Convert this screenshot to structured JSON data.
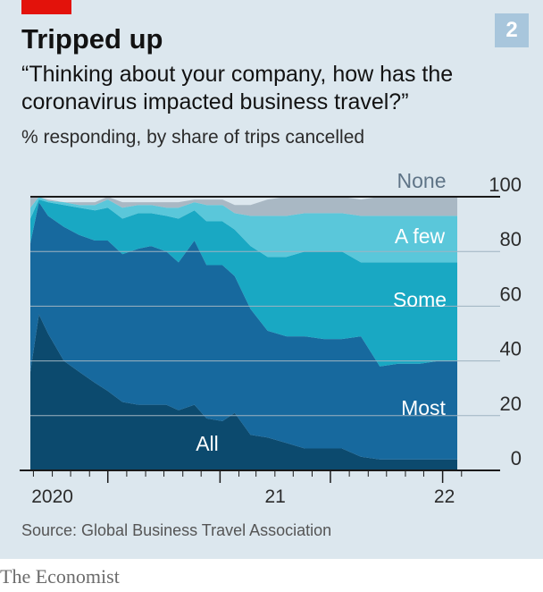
{
  "header": {
    "chart_number": "2",
    "title": "Tripped up",
    "subtitle": "“Thinking about your company, how has the coronavirus impacted business travel?”",
    "unit_note": "% responding, by share of trips cancelled"
  },
  "footer": {
    "source": "Source: Global Business Travel Association",
    "brand": "The Economist"
  },
  "colors": {
    "background": "#dce7ee",
    "accent_red": "#e3120b",
    "all": "#0c4a6e",
    "most": "#17699e",
    "some": "#19a8c3",
    "a_few": "#5ac7da",
    "none": "#a9b8c4"
  },
  "chart_data": {
    "type": "area",
    "stacked": true,
    "ylim": [
      0,
      100
    ],
    "y_ticks": [
      0,
      20,
      40,
      60,
      80,
      100
    ],
    "y_tick_labels": [
      "0",
      "20",
      "40",
      "60",
      "80",
      "100"
    ],
    "x_tick_labels": [
      "2020",
      "21",
      "22"
    ],
    "x_label_years": [
      2020,
      2021,
      2022
    ],
    "x_date_range": [
      "2020-02",
      "2022-02"
    ],
    "x": [
      "2020-02-25",
      "2020-03-10",
      "2020-03-25",
      "2020-04-20",
      "2020-05-15",
      "2020-06-10",
      "2020-07-01",
      "2020-07-25",
      "2020-08-20",
      "2020-09-10",
      "2020-10-05",
      "2020-10-25",
      "2020-11-20",
      "2020-12-10",
      "2021-01-05",
      "2021-01-25",
      "2021-02-20",
      "2021-03-20",
      "2021-04-20",
      "2021-05-20",
      "2021-06-20",
      "2021-07-20",
      "2021-08-20",
      "2021-09-20",
      "2021-10-20",
      "2021-11-25",
      "2021-12-25",
      "2022-01-25"
    ],
    "series": [
      {
        "name": "All",
        "key": "all",
        "values": [
          36,
          57,
          50,
          40,
          36,
          32,
          29,
          25,
          24,
          24,
          24,
          22,
          24,
          19,
          18,
          21,
          13,
          12,
          10,
          8,
          8,
          8,
          5,
          4,
          4,
          4,
          4,
          4
        ]
      },
      {
        "name": "Most",
        "key": "most",
        "values": [
          47,
          41,
          43,
          49,
          50,
          52,
          55,
          54,
          57,
          58,
          56,
          54,
          60,
          56,
          57,
          50,
          46,
          39,
          39,
          41,
          40,
          40,
          44,
          34,
          35,
          35,
          36,
          36
        ]
      },
      {
        "name": "Some",
        "key": "some",
        "values": [
          9,
          1,
          5,
          8,
          10,
          11,
          12,
          13,
          13,
          12,
          13,
          16,
          11,
          16,
          16,
          17,
          23,
          27,
          29,
          31,
          32,
          32,
          27,
          38,
          37,
          37,
          36,
          36
        ]
      },
      {
        "name": "A few",
        "key": "a_few",
        "values": [
          4,
          1,
          0.5,
          1,
          1,
          2,
          3,
          4,
          3,
          3,
          3,
          4,
          3,
          6,
          6,
          6,
          11,
          15,
          15,
          14,
          14,
          14,
          17,
          17,
          17,
          17,
          17,
          17
        ]
      },
      {
        "name": "None",
        "key": "none",
        "values": [
          4,
          0,
          0.5,
          0,
          1,
          1,
          1,
          2,
          1,
          1,
          2,
          2,
          1,
          2,
          2,
          3,
          4,
          6,
          7,
          6,
          6,
          6,
          6,
          7,
          7,
          7,
          7,
          7
        ]
      }
    ],
    "x_major_ticks": [
      "2020-01-01",
      "2020-07-01",
      "2021-01-01",
      "2021-07-01",
      "2022-01-01"
    ],
    "x_minor_ticks": [
      "2020-02-01",
      "2020-03-01",
      "2020-04-01",
      "2020-05-01",
      "2020-06-01",
      "2020-08-01",
      "2020-09-01",
      "2020-10-01",
      "2020-11-01",
      "2020-12-01",
      "2021-02-01",
      "2021-03-01",
      "2021-04-01",
      "2021-05-01",
      "2021-06-01",
      "2021-08-01",
      "2021-09-01",
      "2021-10-01",
      "2021-11-01",
      "2021-12-01",
      "2022-02-01"
    ]
  }
}
